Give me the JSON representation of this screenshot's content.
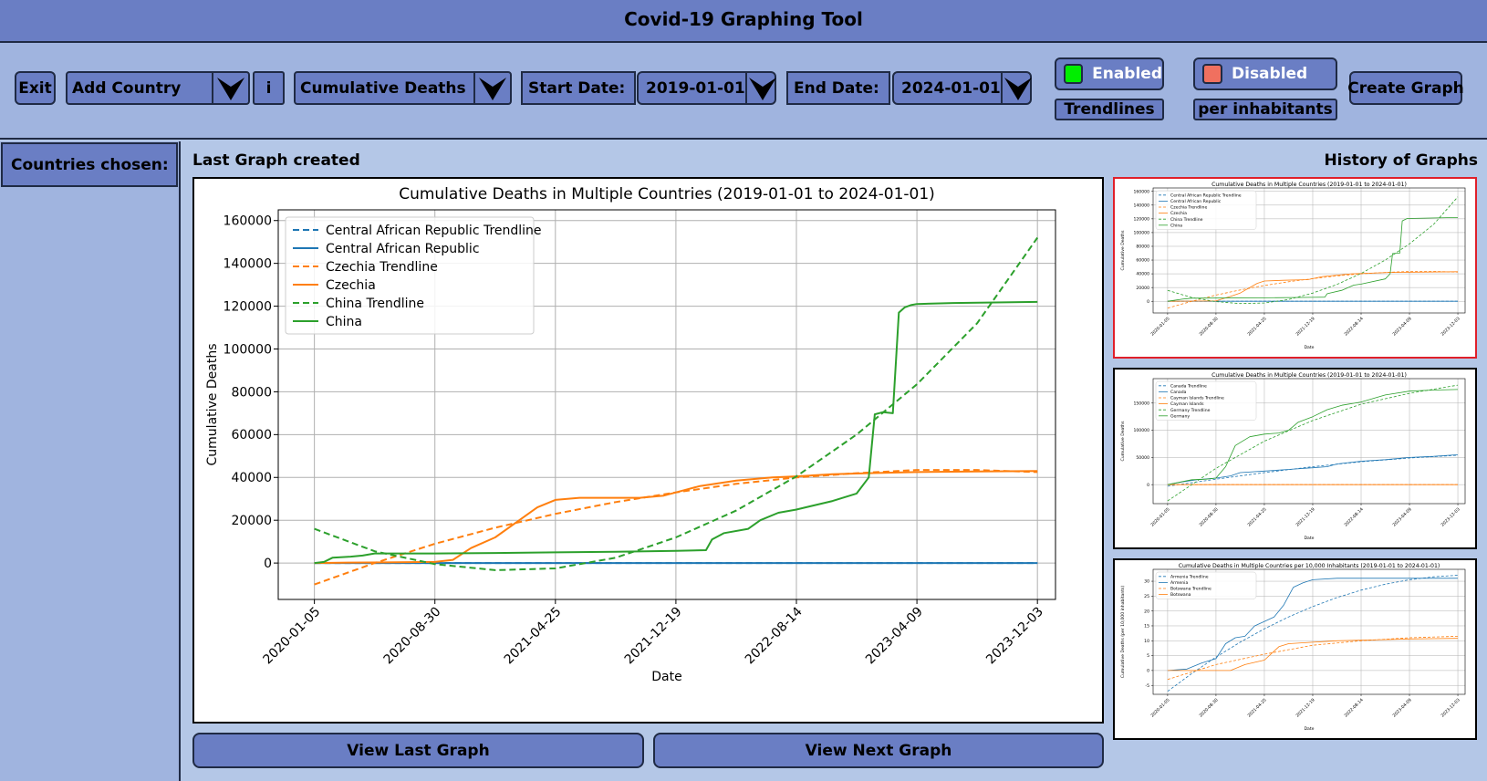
{
  "app": {
    "title": "Covid-19 Graphing Tool"
  },
  "toolbar": {
    "exit_label": "Exit",
    "add_country": {
      "value": "Add Country",
      "icon": "chevron-down-icon"
    },
    "info_label": "i",
    "metric": {
      "value": "Cumulative Deaths",
      "icon": "chevron-down-icon"
    },
    "start_date": {
      "label": "Start Date:",
      "value": "2019-01-01"
    },
    "end_date": {
      "label": "End Date:",
      "value": "2024-01-01"
    },
    "trendlines": {
      "state": "Enabled",
      "label": "Trendlines",
      "color": "#00ee00"
    },
    "per_inhabitants": {
      "state": "Disabled",
      "label": "per inhabitants",
      "color": "#f0705f"
    },
    "create_graph_label": "Create Graph"
  },
  "sidebar": {
    "header": "Countries chosen:",
    "items": []
  },
  "main": {
    "last_graph_label": "Last Graph created",
    "history_label": "History of Graphs",
    "view_last_label": "View Last Graph",
    "view_next_label": "View Next Graph"
  },
  "chart_data": [
    {
      "type": "line",
      "title": "Cumulative Deaths in Multiple Countries (2019-01-01 to 2024-01-01)",
      "xlabel": "Date",
      "ylabel": "Cumulative Deaths",
      "xticks": [
        "2020-01-05",
        "2020-08-30",
        "2021-04-25",
        "2021-12-19",
        "2022-08-14",
        "2023-04-09",
        "2023-12-03"
      ],
      "yticks": [
        0,
        20000,
        40000,
        60000,
        80000,
        100000,
        120000,
        140000,
        160000
      ],
      "ylim": [
        -17000,
        165000
      ],
      "xlim": [
        -0.3,
        6.15
      ],
      "grid": true,
      "legend": "top-left",
      "series": [
        {
          "name": "Central African Republic Trendline",
          "color": "#1f77b4",
          "dashed": true,
          "x": [
            0,
            6
          ],
          "y": [
            0,
            0
          ]
        },
        {
          "name": "Central African Republic",
          "color": "#1f77b4",
          "dashed": false,
          "x": [
            0,
            6
          ],
          "y": [
            0,
            0
          ]
        },
        {
          "name": "Czechia Trendline",
          "color": "#ff7f0e",
          "dashed": true,
          "x": [
            0,
            0.5,
            1,
            1.5,
            2,
            2.5,
            3,
            3.5,
            4,
            4.5,
            5,
            5.5,
            6
          ],
          "y": [
            -10000,
            0,
            9000,
            16500,
            23000,
            28500,
            33000,
            37000,
            40000,
            42000,
            43500,
            43500,
            42500
          ]
        },
        {
          "name": "Czechia",
          "color": "#ff7f0e",
          "dashed": false,
          "x": [
            0,
            0.3,
            0.6,
            1,
            1.15,
            1.3,
            1.5,
            1.7,
            1.85,
            2,
            2.2,
            2.4,
            2.7,
            2.9,
            3,
            3.2,
            3.5,
            3.8,
            4,
            4.3,
            4.6,
            5,
            5.5,
            6
          ],
          "y": [
            0,
            200,
            300,
            500,
            1500,
            7000,
            12000,
            20000,
            26000,
            29500,
            30500,
            30500,
            30500,
            31500,
            33000,
            36000,
            38500,
            40000,
            40500,
            41500,
            42000,
            42500,
            42800,
            43000
          ]
        },
        {
          "name": "China Trendline",
          "color": "#2ca02c",
          "dashed": true,
          "x": [
            0,
            0.5,
            1,
            1.5,
            2,
            2.5,
            3,
            3.5,
            4,
            4.5,
            5,
            5.5,
            6
          ],
          "y": [
            16000,
            5500,
            -500,
            -3300,
            -2500,
            2500,
            12000,
            24500,
            40500,
            60000,
            83500,
            112000,
            152000
          ]
        },
        {
          "name": "China",
          "color": "#2ca02c",
          "dashed": false,
          "x": [
            0,
            0.08,
            0.15,
            0.3,
            0.4,
            0.5,
            1,
            1.5,
            2,
            2.5,
            3,
            3.25,
            3.3,
            3.4,
            3.6,
            3.7,
            3.85,
            4,
            4.3,
            4.5,
            4.6,
            4.65,
            4.72,
            4.8,
            4.85,
            4.9,
            4.95,
            5,
            5.3,
            6
          ],
          "y": [
            0,
            500,
            2500,
            3000,
            3500,
            4500,
            4500,
            4700,
            5000,
            5300,
            5700,
            6000,
            11000,
            14000,
            16000,
            20000,
            23500,
            25000,
            29000,
            32500,
            40000,
            69500,
            70500,
            70000,
            117000,
            119500,
            120500,
            121000,
            121500,
            122000
          ]
        }
      ]
    },
    {
      "type": "line",
      "title": "Cumulative Deaths in Multiple Countries (2019-01-01 to 2024-01-01)",
      "xlabel": "Date",
      "ylabel": "Cumulative Deaths",
      "xticks": [
        "2020-01-05",
        "2020-08-30",
        "2021-04-25",
        "2021-12-19",
        "2022-08-14",
        "2023-04-09",
        "2023-12-03"
      ],
      "yticks": [
        0,
        20000,
        40000,
        60000,
        80000,
        100000,
        120000,
        140000,
        160000
      ],
      "ylim": [
        -17000,
        165000
      ],
      "xlim": [
        -0.3,
        6.15
      ],
      "grid": true,
      "legend": "top-left",
      "series": [
        {
          "name": "Central African Republic Trendline",
          "color": "#1f77b4",
          "dashed": true,
          "x": [
            0,
            6
          ],
          "y": [
            0,
            0
          ]
        },
        {
          "name": "Central African Republic",
          "color": "#1f77b4",
          "dashed": false,
          "x": [
            0,
            6
          ],
          "y": [
            0,
            0
          ]
        },
        {
          "name": "Czechia Trendline",
          "color": "#ff7f0e",
          "dashed": true,
          "x": [
            0,
            0.5,
            1,
            1.5,
            2,
            2.5,
            3,
            3.5,
            4,
            4.5,
            5,
            5.5,
            6
          ],
          "y": [
            -10000,
            0,
            9000,
            16500,
            23000,
            28500,
            33000,
            37000,
            40000,
            42000,
            43500,
            43500,
            42500
          ]
        },
        {
          "name": "Czechia",
          "color": "#ff7f0e",
          "dashed": false,
          "x": [
            0,
            0.6,
            1,
            1.3,
            1.5,
            1.85,
            2,
            2.4,
            2.9,
            3.2,
            3.8,
            4.6,
            6
          ],
          "y": [
            0,
            300,
            500,
            7000,
            12000,
            26000,
            29500,
            30500,
            31500,
            36000,
            40000,
            42000,
            43000
          ]
        },
        {
          "name": "China Trendline",
          "color": "#2ca02c",
          "dashed": true,
          "x": [
            0,
            0.5,
            1,
            1.5,
            2,
            2.5,
            3,
            3.5,
            4,
            4.5,
            5,
            5.5,
            6
          ],
          "y": [
            16000,
            5500,
            -500,
            -3300,
            -2500,
            2500,
            12000,
            24500,
            40500,
            60000,
            83500,
            112000,
            152000
          ]
        },
        {
          "name": "China",
          "color": "#2ca02c",
          "dashed": false,
          "x": [
            0,
            0.3,
            0.5,
            2,
            3,
            3.25,
            3.3,
            3.6,
            3.85,
            4,
            4.5,
            4.6,
            4.65,
            4.8,
            4.85,
            4.95,
            6
          ],
          "y": [
            0,
            3000,
            4500,
            5000,
            5700,
            6000,
            11000,
            16000,
            23500,
            25000,
            32500,
            40000,
            69500,
            70000,
            117000,
            120500,
            122000
          ]
        }
      ]
    },
    {
      "type": "line",
      "title": "Cumulative Deaths in Multiple Countries (2019-01-01 to 2024-01-01)",
      "xlabel": "Date",
      "ylabel": "Cumulative Deaths",
      "xticks": [
        "2020-01-05",
        "2020-08-30",
        "2021-04-25",
        "2021-12-19",
        "2022-08-14",
        "2023-04-09",
        "2023-12-03"
      ],
      "yticks": [
        0,
        50000,
        100000,
        150000
      ],
      "ylim": [
        -35000,
        195000
      ],
      "xlim": [
        -0.3,
        6.15
      ],
      "grid": true,
      "legend": "top-left",
      "series": [
        {
          "name": "Canada Trendline",
          "color": "#1f77b4",
          "dashed": true,
          "x": [
            0,
            1,
            2,
            3,
            4,
            5,
            6
          ],
          "y": [
            -3000,
            10000,
            22000,
            33000,
            42000,
            49000,
            54000
          ]
        },
        {
          "name": "Canada",
          "color": "#1f77b4",
          "dashed": false,
          "x": [
            0,
            0.3,
            0.6,
            1,
            1.3,
            1.5,
            2,
            2.5,
            3,
            3.3,
            3.5,
            4,
            4.5,
            5,
            5.5,
            6
          ],
          "y": [
            0,
            5000,
            9000,
            12000,
            16000,
            22000,
            25000,
            28000,
            31000,
            33000,
            38000,
            43000,
            46000,
            50000,
            52000,
            55000
          ]
        },
        {
          "name": "Cayman Islands Trendline",
          "color": "#ff7f0e",
          "dashed": true,
          "x": [
            0,
            6
          ],
          "y": [
            0,
            0
          ]
        },
        {
          "name": "Cayman Islands",
          "color": "#ff7f0e",
          "dashed": false,
          "x": [
            0,
            6
          ],
          "y": [
            0,
            0
          ]
        },
        {
          "name": "Germany Trendline",
          "color": "#2ca02c",
          "dashed": true,
          "x": [
            0,
            1,
            2,
            3,
            4,
            5,
            6
          ],
          "y": [
            -30000,
            30000,
            80000,
            118000,
            148000,
            168000,
            183000
          ]
        },
        {
          "name": "Germany",
          "color": "#2ca02c",
          "dashed": false,
          "x": [
            0,
            0.5,
            0.8,
            1,
            1.2,
            1.4,
            1.7,
            2,
            2.3,
            2.5,
            2.7,
            3,
            3.3,
            3.6,
            4,
            4.5,
            5,
            5.5,
            6
          ],
          "y": [
            0,
            9000,
            10000,
            12000,
            33000,
            72000,
            88000,
            93000,
            95000,
            100000,
            115000,
            125000,
            138000,
            146000,
            152000,
            165000,
            172000,
            174000,
            175000
          ]
        }
      ]
    },
    {
      "type": "line",
      "title": "Cumulative Deaths in Multiple Countries per 10,000 Inhabitants (2019-01-01 to 2024-01-01)",
      "xlabel": "Date",
      "ylabel": "Cumulative Deaths (per 10,000 inhabitants)",
      "xticks": [
        "2020-01-05",
        "2020-08-30",
        "2021-04-25",
        "2021-12-19",
        "2022-08-14",
        "2023-04-09",
        "2023-12-03"
      ],
      "yticks": [
        -5,
        0,
        5,
        10,
        15,
        20,
        25,
        30
      ],
      "ylim": [
        -8,
        34
      ],
      "xlim": [
        -0.3,
        6.15
      ],
      "grid": true,
      "legend": "top-left",
      "series": [
        {
          "name": "Armenia Trendline",
          "color": "#1f77b4",
          "dashed": true,
          "x": [
            0,
            0.5,
            1,
            1.5,
            2,
            2.5,
            3,
            3.5,
            4,
            4.5,
            5,
            5.5,
            6
          ],
          "y": [
            -7,
            -1,
            4.5,
            9.5,
            14,
            18,
            21.5,
            24.5,
            27,
            29,
            30.5,
            31.5,
            32
          ]
        },
        {
          "name": "Armenia",
          "color": "#1f77b4",
          "dashed": false,
          "x": [
            0,
            0.4,
            0.7,
            1,
            1.2,
            1.4,
            1.6,
            1.8,
            2,
            2.2,
            2.4,
            2.6,
            2.8,
            3,
            3.5,
            4,
            4.5,
            5,
            5.5,
            6
          ],
          "y": [
            0,
            0.5,
            2.5,
            4,
            9,
            11,
            11.5,
            15,
            16.5,
            18,
            22,
            28,
            29.5,
            30.5,
            31,
            31,
            31,
            31,
            31,
            31
          ]
        },
        {
          "name": "Botswana Trendline",
          "color": "#ff7f0e",
          "dashed": true,
          "x": [
            0,
            1,
            2,
            3,
            4,
            5,
            6
          ],
          "y": [
            -3,
            2,
            5.5,
            8.5,
            10,
            11,
            11.5
          ]
        },
        {
          "name": "Botswana",
          "color": "#ff7f0e",
          "dashed": false,
          "x": [
            0,
            0.5,
            1,
            1.3,
            1.6,
            2,
            2.3,
            2.5,
            3,
            3.5,
            4,
            4.5,
            5,
            5.5,
            6
          ],
          "y": [
            0,
            0,
            0,
            0,
            2,
            3.5,
            8,
            9,
            9.5,
            10,
            10.2,
            10.4,
            10.6,
            10.7,
            10.8
          ]
        }
      ]
    }
  ]
}
